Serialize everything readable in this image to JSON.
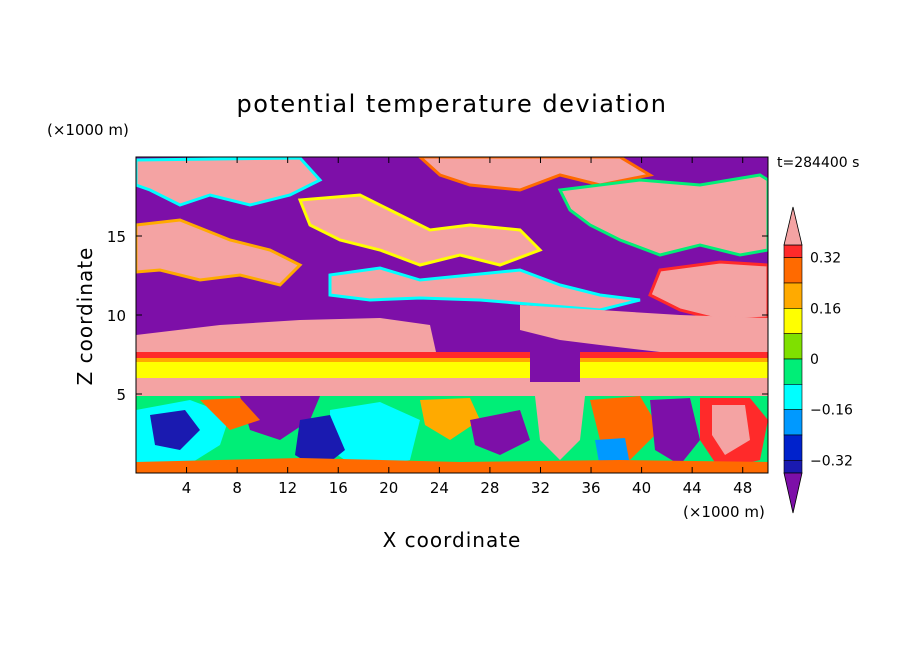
{
  "chart_data": {
    "type": "heatmap",
    "title": "potential temperature deviation",
    "time_label": "t=284400 s",
    "xlabel": "X coordinate",
    "ylabel": "Z coordinate",
    "x_unit": "(×1000 m)",
    "y_unit": "(×1000 m)",
    "xlim": [
      0,
      50
    ],
    "ylim": [
      0,
      20
    ],
    "x_ticks": [
      4,
      8,
      12,
      16,
      20,
      24,
      28,
      32,
      36,
      40,
      44,
      48
    ],
    "y_ticks": [
      5,
      10,
      15
    ],
    "colorbar": {
      "levels": [
        {
          "min": 0.36,
          "color": "#f4a3a3"
        },
        {
          "min": 0.32,
          "max": 0.36,
          "color": "#ff2a2a"
        },
        {
          "min": 0.24,
          "max": 0.32,
          "color": "#ff6a00"
        },
        {
          "min": 0.16,
          "max": 0.24,
          "color": "#ffaa00"
        },
        {
          "min": 0.08,
          "max": 0.16,
          "color": "#ffff00"
        },
        {
          "min": 0.0,
          "max": 0.08,
          "color": "#7fe000"
        },
        {
          "min": -0.08,
          "max": 0.0,
          "color": "#00ee77"
        },
        {
          "min": -0.16,
          "max": -0.08,
          "color": "#00ffff"
        },
        {
          "min": -0.24,
          "max": -0.16,
          "color": "#0099ff"
        },
        {
          "min": -0.32,
          "max": -0.24,
          "color": "#0022cc"
        },
        {
          "min": -0.36,
          "max": -0.32,
          "color": "#1a1ab0"
        },
        {
          "max": -0.36,
          "color": "#7d0fa8"
        }
      ],
      "tick_labels": [
        "0.32",
        "0.16",
        "0",
        "−0.16",
        "−0.32"
      ],
      "tick_values": [
        0.32,
        0.16,
        0.0,
        -0.16,
        -0.32
      ]
    }
  }
}
